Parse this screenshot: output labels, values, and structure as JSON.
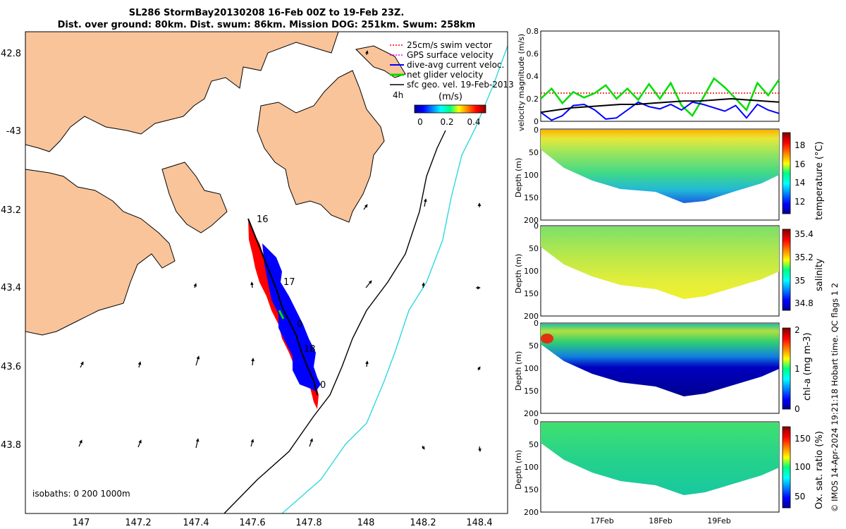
{
  "header": {
    "title_line1": "SL286 StormBay20130208 16-Feb 00Z to 19-Feb 23Z.",
    "title_line2": "Dist. over ground: 80km. Dist. swum: 86km. Mission DOG: 251km. Swum: 258km"
  },
  "colors": {
    "land": "#F9C49A",
    "track_red": "#ff0000",
    "track_blue": "#0000ff",
    "isobath_200": "#000000",
    "isobath_1000": "#2fd8e0",
    "swim_vector": "#ff0000",
    "gps_velocity": "#ff00ff",
    "dive_avg": "#0000ff",
    "net_glider": "#00dd00",
    "sfc_geo": "#000000"
  },
  "map": {
    "lon_ticks": [
      "147",
      "147.2",
      "147.4",
      "147.6",
      "147.8",
      "148",
      "148.2",
      "148.4"
    ],
    "lat_ticks": [
      "42.8",
      "-43",
      "43.2",
      "43.4",
      "43.6",
      "43.8"
    ],
    "day_labels": [
      "16",
      "17",
      "0",
      "18",
      "0"
    ],
    "isobaths_label": "isobaths: 0   200  1000m",
    "legend": [
      {
        "label": "25cm/s swim vector",
        "icon": "red-dotted-arrow"
      },
      {
        "label": "GPS surface velocity",
        "icon": "magenta-dotted-arrow"
      },
      {
        "label": "dive-avg current veloc.",
        "icon": "blue-arrow"
      },
      {
        "label": "net glider velocity",
        "icon": "green-arrow"
      },
      {
        "label": "sfc geo. vel. 19-Feb-2013",
        "icon": "black-arrow"
      }
    ],
    "colorbar": {
      "prefix": "4h",
      "units": "(m/s)",
      "ticks": [
        "0",
        "0.2",
        "0.4"
      ]
    }
  },
  "chart_data": [
    {
      "type": "line",
      "ylabel": "velocity magnitude (m/s)",
      "ylim": [
        0,
        0.8
      ],
      "yticks": [
        "0",
        "0.2",
        "0.4",
        "0.6",
        "0.8"
      ],
      "x_ticks": [
        "17Feb",
        "18Feb",
        "19Feb"
      ],
      "series": [
        {
          "color": "#ff0000",
          "style": "dotted",
          "values": [
            0.25,
            0.25,
            0.25,
            0.25,
            0.25,
            0.25,
            0.25,
            0.25,
            0.25,
            0.25
          ]
        },
        {
          "color": "#00dd00",
          "values": [
            0.2,
            0.29,
            0.16,
            0.26,
            0.21,
            0.25,
            0.32,
            0.2,
            0.29,
            0.19,
            0.33,
            0.2,
            0.34,
            0.14,
            0.05,
            0.21,
            0.38,
            0.3,
            0.2,
            0.1,
            0.34,
            0.23,
            0.37
          ]
        },
        {
          "color": "#0000ff",
          "values": [
            0.08,
            0.01,
            0.05,
            0.14,
            0.15,
            0.1,
            0.02,
            0.03,
            0.1,
            0.17,
            0.13,
            0.11,
            0.15,
            0.1,
            0.17,
            0.15,
            0.12,
            0.09,
            0.14,
            0.03,
            0.15,
            0.1,
            0.07
          ]
        },
        {
          "color": "#000000",
          "values": [
            0.08,
            0.1,
            0.12,
            0.13,
            0.14,
            0.15,
            0.15,
            0.16,
            0.17,
            0.18,
            0.18,
            0.19,
            0.2,
            0.19,
            0.18,
            0.17
          ]
        }
      ]
    },
    {
      "type": "heatmap",
      "ylabel": "Depth (m)",
      "colorbar_label": "temperature (°C)",
      "yticks": [
        "0",
        "50",
        "100",
        "150",
        "200"
      ],
      "cticks": [
        "12",
        "14",
        "16",
        "18"
      ]
    },
    {
      "type": "heatmap",
      "ylabel": "Depth (m)",
      "colorbar_label": "salinity",
      "yticks": [
        "0",
        "50",
        "100",
        "150",
        "200"
      ],
      "cticks": [
        "34.8",
        "35",
        "35.2",
        "35.4"
      ]
    },
    {
      "type": "heatmap",
      "ylabel": "Depth (m)",
      "colorbar_label": "chl-a (mg m-3)",
      "yticks": [
        "0",
        "50",
        "100",
        "150",
        "200"
      ],
      "cticks": [
        "0",
        "1",
        "2"
      ]
    },
    {
      "type": "heatmap",
      "ylabel": "Depth (m)",
      "colorbar_label": "Ox. sat. ratio (%)",
      "yticks": [
        "0",
        "50",
        "100",
        "150",
        "200"
      ],
      "cticks": [
        "50",
        "100",
        "150"
      ],
      "x_ticks": [
        "17Feb",
        "18Feb",
        "19Feb"
      ]
    }
  ],
  "footer": {
    "credit": "© IMOS 14-Apr-2024 19:21:18 Hobart time. QC flags 1  2"
  }
}
